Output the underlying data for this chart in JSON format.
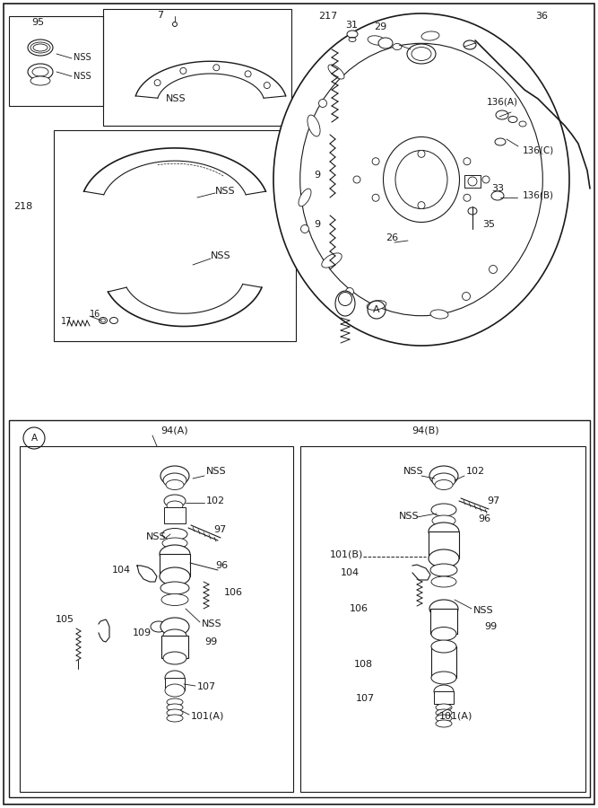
{
  "bg_color": "#ffffff",
  "line_color": "#1a1a1a",
  "fig_width": 6.67,
  "fig_height": 9.0,
  "dpi": 100
}
